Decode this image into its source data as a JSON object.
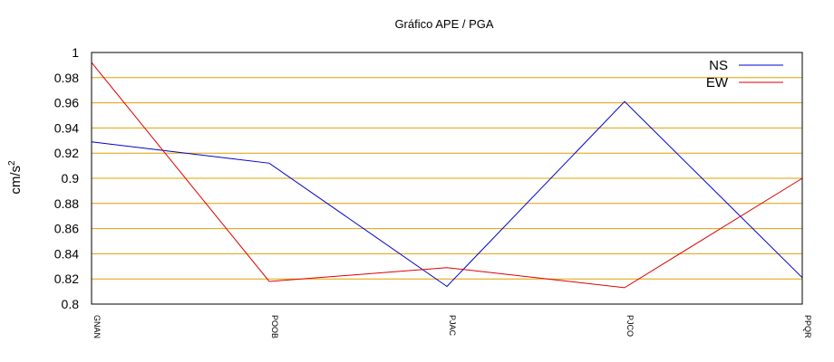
{
  "chart_data": {
    "type": "line",
    "title": "Gráfico  APE / PGA",
    "ylabel": "cm/s",
    "ylabel_superscript": "2",
    "xlabel": "",
    "categories": [
      "GNAN",
      "POOB",
      "PJAC",
      "PJCO",
      "PPQR"
    ],
    "ylim": [
      0.8,
      1.0
    ],
    "yticks": [
      "0.8",
      "0.82",
      "0.84",
      "0.86",
      "0.88",
      "0.9",
      "0.92",
      "0.94",
      "0.96",
      "0.98",
      "1"
    ],
    "grid": true,
    "grid_color": "#e0a000",
    "legend_position": "top-right",
    "series": [
      {
        "name": "NS",
        "color": "#0000cc",
        "values": [
          0.929,
          0.912,
          0.814,
          0.961,
          0.821
        ]
      },
      {
        "name": "EW",
        "color": "#dd0000",
        "values": [
          0.992,
          0.818,
          0.829,
          0.813,
          0.9
        ]
      }
    ]
  }
}
